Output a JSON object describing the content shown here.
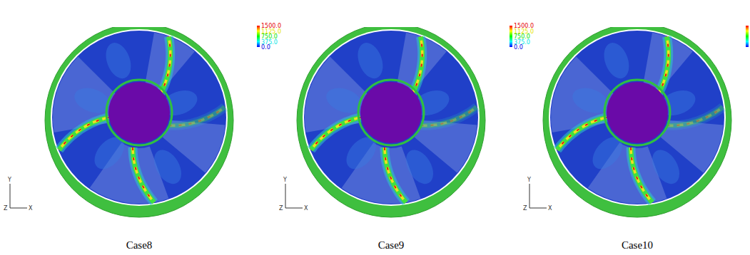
{
  "chart_data": [
    {
      "type": "contour",
      "title": "Case8",
      "colorbar_range": [
        0,
        1500
      ],
      "colorbar_ticks": [
        {
          "value": 1500,
          "label": "1500.0"
        },
        {
          "value": 1125,
          "label": "1125.0"
        },
        {
          "value": 750,
          "label": "750.0"
        },
        {
          "value": 375,
          "label": "375.0"
        },
        {
          "value": 0,
          "label": "0.0"
        }
      ],
      "triad": {
        "y": "Y",
        "z": "Z",
        "x": "X"
      }
    },
    {
      "type": "contour",
      "title": "Case9",
      "colorbar_range": [
        0,
        1500
      ],
      "colorbar_ticks": [
        {
          "value": 1500,
          "label": "1500.0"
        },
        {
          "value": 1125,
          "label": "1125.0"
        },
        {
          "value": 750,
          "label": "750.0"
        },
        {
          "value": 375,
          "label": "375.0"
        },
        {
          "value": 0,
          "label": "0.0"
        }
      ],
      "triad": {
        "y": "Y",
        "z": "Z",
        "x": "X"
      }
    },
    {
      "type": "contour",
      "title": "Case10",
      "colorbar_range": [
        0,
        1500
      ],
      "triad": {
        "y": "Y",
        "z": "Z",
        "x": "X"
      }
    }
  ]
}
